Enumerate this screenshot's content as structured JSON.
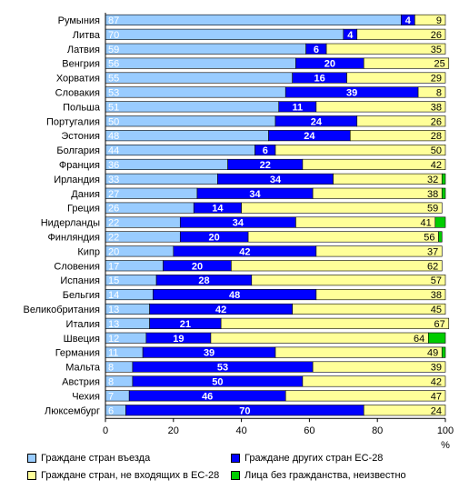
{
  "chart_data": {
    "type": "bar",
    "orientation": "horizontal",
    "stacked": true,
    "categories": [
      "Румыния",
      "Литва",
      "Латвия",
      "Венгрия",
      "Хорватия",
      "Словакия",
      "Польша",
      "Португалия",
      "Эстония",
      "Болгария",
      "Франция",
      "Ирландия",
      "Дания",
      "Греция",
      "Нидерланды",
      "Финляндия",
      "Кипр",
      "Словения",
      "Испания",
      "Бельгия",
      "Великобритания",
      "Италия",
      "Швеция",
      "Германия",
      "Мальта",
      "Австрия",
      "Чехия",
      "Люксембург"
    ],
    "series": [
      {
        "name": "Граждане стран въезда",
        "color": "#99ccff",
        "label_color": "#ffffff",
        "values": [
          87,
          70,
          59,
          56,
          55,
          53,
          51,
          50,
          48,
          44,
          36,
          33,
          27,
          26,
          22,
          22,
          20,
          17,
          15,
          14,
          13,
          13,
          12,
          11,
          8,
          8,
          7,
          6
        ]
      },
      {
        "name": "Граждане других стран ЕС-28",
        "color": "#0000ff",
        "label_color": "#ffffff",
        "values": [
          4,
          4,
          6,
          20,
          16,
          39,
          11,
          24,
          24,
          6,
          22,
          34,
          34,
          14,
          34,
          20,
          42,
          20,
          28,
          48,
          42,
          21,
          19,
          39,
          53,
          50,
          46,
          70
        ]
      },
      {
        "name": "Граждане стран, не входящих в ЕС-28",
        "color": "#ffff99",
        "label_color": "#000000",
        "values": [
          9,
          26,
          35,
          25,
          29,
          8,
          38,
          26,
          28,
          50,
          42,
          32,
          38,
          59,
          41,
          56,
          37,
          62,
          57,
          38,
          45,
          67,
          64,
          49,
          39,
          42,
          47,
          24
        ]
      },
      {
        "name": "Лица без гражданства, неизвестно",
        "color": "#00cc00",
        "label_color": "#000000",
        "values": [
          0,
          0,
          0,
          0,
          0,
          0,
          0,
          0,
          0,
          0,
          0,
          1,
          1,
          0,
          3,
          1,
          0,
          0,
          0,
          0,
          0,
          0,
          5,
          1,
          0,
          0,
          0,
          0
        ]
      }
    ],
    "xlim": [
      0,
      100
    ],
    "xticks": [
      "0",
      "20",
      "40",
      "60",
      "80",
      "100"
    ],
    "xunit": "%",
    "legend": "bottom"
  }
}
